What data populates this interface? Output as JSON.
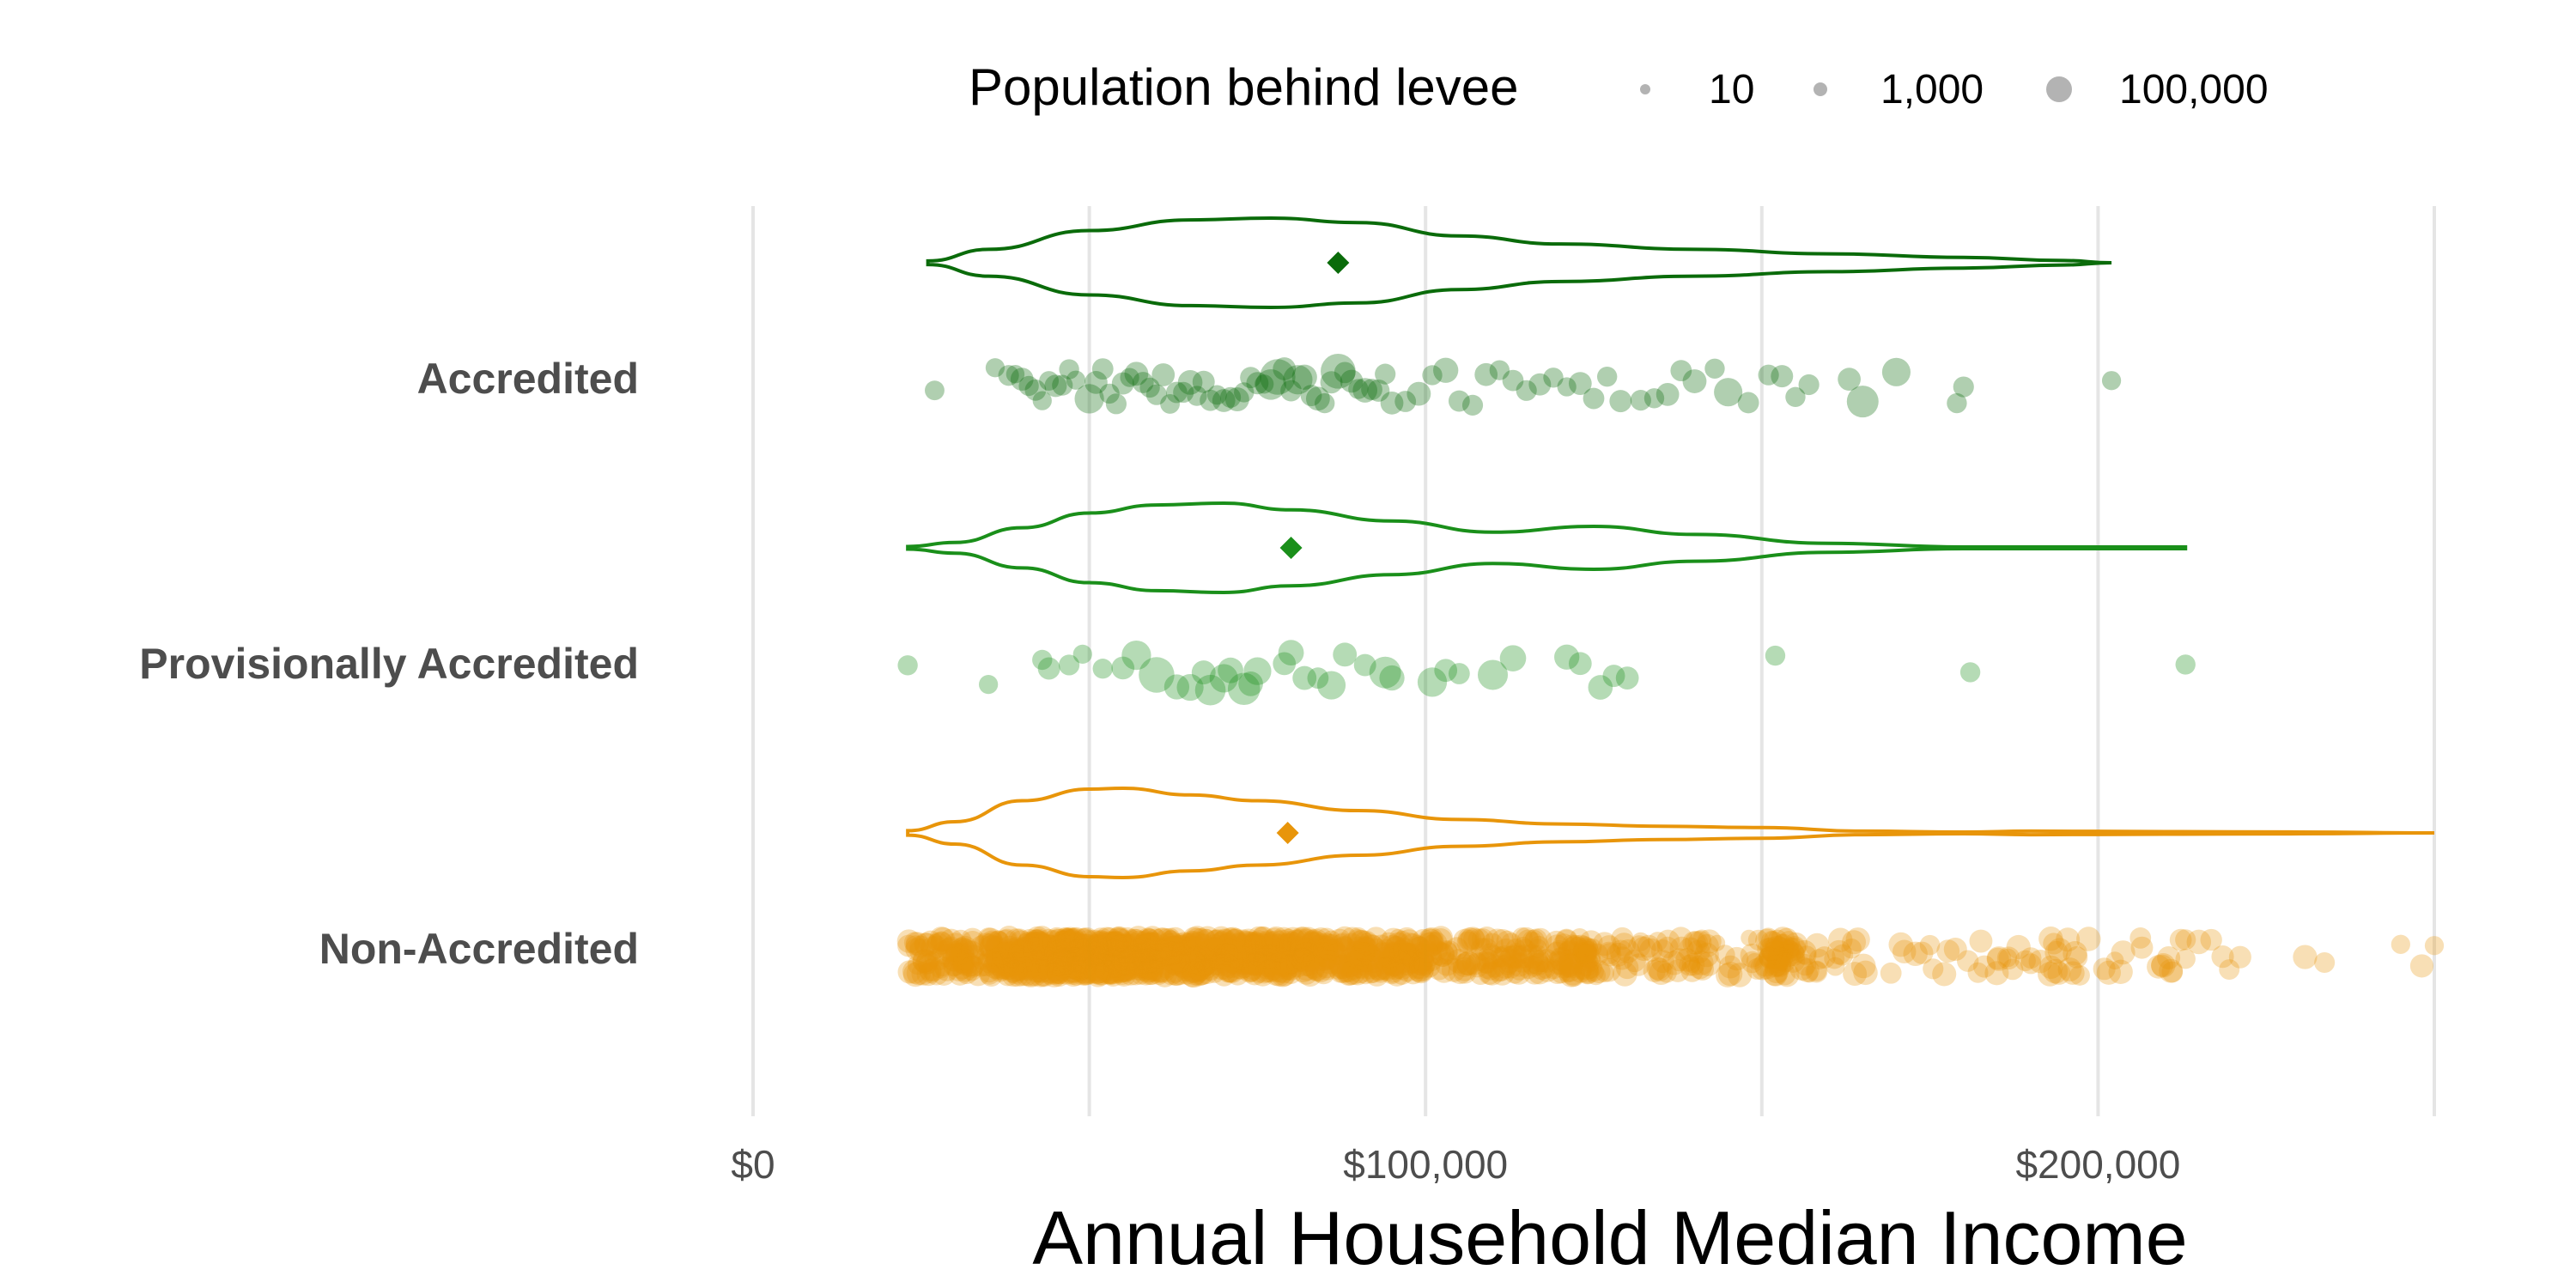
{
  "chart_data": {
    "type": "violin",
    "title": "",
    "xlabel": "Annual Household Median Income",
    "ylabel": "",
    "xlim": [
      0,
      250000
    ],
    "x_ticks": [
      0,
      100000,
      200000
    ],
    "x_tick_labels": [
      "$0",
      "$100,000",
      "$200,000"
    ],
    "grid": {
      "vertical": true,
      "horizontal": false
    },
    "legend": {
      "title": "Population behind levee",
      "placement": "top",
      "entries": [
        {
          "label": "10",
          "value": 10
        },
        {
          "label": "1,000",
          "value": 1000
        },
        {
          "label": "100,000",
          "value": 100000
        }
      ],
      "color": "#b3b3b3"
    },
    "groups": [
      {
        "name": "Accredited",
        "color": "#0a6b0a",
        "mean": 87000,
        "violin_density": [
          [
            26000,
            0.04
          ],
          [
            35000,
            0.3
          ],
          [
            50000,
            0.72
          ],
          [
            65000,
            0.96
          ],
          [
            77000,
            1.0
          ],
          [
            90000,
            0.9
          ],
          [
            105000,
            0.6
          ],
          [
            120000,
            0.42
          ],
          [
            140000,
            0.3
          ],
          [
            160000,
            0.2
          ],
          [
            180000,
            0.12
          ],
          [
            195000,
            0.05
          ],
          [
            202000,
            0.0
          ]
        ],
        "points": [
          [
            27000,
            50
          ],
          [
            36000,
            40
          ],
          [
            38000,
            80
          ],
          [
            39000,
            30
          ],
          [
            40000,
            200
          ],
          [
            41000,
            60
          ],
          [
            42000,
            100
          ],
          [
            43000,
            40
          ],
          [
            44000,
            50
          ],
          [
            45000,
            150
          ],
          [
            46000,
            80
          ],
          [
            47000,
            60
          ],
          [
            48000,
            40
          ],
          [
            50000,
            3000
          ],
          [
            51000,
            200
          ],
          [
            52000,
            100
          ],
          [
            53000,
            60
          ],
          [
            54000,
            80
          ],
          [
            55000,
            150
          ],
          [
            56000,
            40
          ],
          [
            57000,
            300
          ],
          [
            58000,
            100
          ],
          [
            59000,
            60
          ],
          [
            60000,
            80
          ],
          [
            61000,
            200
          ],
          [
            62000,
            50
          ],
          [
            63000,
            100
          ],
          [
            64000,
            80
          ],
          [
            65000,
            400
          ],
          [
            66000,
            60
          ],
          [
            67000,
            150
          ],
          [
            68000,
            100
          ],
          [
            69000,
            50
          ],
          [
            70000,
            200
          ],
          [
            71000,
            80
          ],
          [
            72000,
            300
          ],
          [
            73000,
            60
          ],
          [
            74000,
            100
          ],
          [
            75000,
            150
          ],
          [
            76000,
            40
          ],
          [
            77000,
            5000
          ],
          [
            78000,
            40000
          ],
          [
            79000,
            200
          ],
          [
            80000,
            100
          ],
          [
            81000,
            3000
          ],
          [
            82000,
            500
          ],
          [
            83000,
            100
          ],
          [
            84000,
            300
          ],
          [
            85000,
            60
          ],
          [
            86000,
            150
          ],
          [
            87000,
            30000
          ],
          [
            88000,
            100
          ],
          [
            89000,
            200
          ],
          [
            90000,
            60
          ],
          [
            91000,
            400
          ],
          [
            92000,
            100
          ],
          [
            93000,
            150
          ],
          [
            94000,
            80
          ],
          [
            95000,
            200
          ],
          [
            97000,
            100
          ],
          [
            99000,
            300
          ],
          [
            101000,
            60
          ],
          [
            103000,
            500
          ],
          [
            105000,
            100
          ],
          [
            107000,
            80
          ],
          [
            109000,
            200
          ],
          [
            111000,
            60
          ],
          [
            113000,
            100
          ],
          [
            115000,
            80
          ],
          [
            117000,
            150
          ],
          [
            119000,
            60
          ],
          [
            121000,
            40
          ],
          [
            123000,
            200
          ],
          [
            125000,
            100
          ],
          [
            127000,
            60
          ],
          [
            129000,
            150
          ],
          [
            132000,
            80
          ],
          [
            134000,
            60
          ],
          [
            136000,
            200
          ],
          [
            138000,
            100
          ],
          [
            140000,
            300
          ],
          [
            143000,
            60
          ],
          [
            145000,
            2000
          ],
          [
            148000,
            100
          ],
          [
            151000,
            80
          ],
          [
            153000,
            150
          ],
          [
            155000,
            60
          ],
          [
            157000,
            80
          ],
          [
            163000,
            200
          ],
          [
            165000,
            8000
          ],
          [
            170000,
            2000
          ],
          [
            179000,
            60
          ],
          [
            180000,
            80
          ],
          [
            202000,
            40
          ]
        ]
      },
      {
        "name": "Provisionally Accredited",
        "color": "#1a8f1a",
        "mean": 80000,
        "violin_density": [
          [
            23000,
            0.03
          ],
          [
            30000,
            0.12
          ],
          [
            40000,
            0.45
          ],
          [
            50000,
            0.78
          ],
          [
            60000,
            0.96
          ],
          [
            70000,
            1.0
          ],
          [
            80000,
            0.85
          ],
          [
            95000,
            0.6
          ],
          [
            110000,
            0.35
          ],
          [
            125000,
            0.48
          ],
          [
            140000,
            0.3
          ],
          [
            160000,
            0.1
          ],
          [
            180000,
            0.02
          ],
          [
            213000,
            0.02
          ]
        ],
        "points": [
          [
            23000,
            60
          ],
          [
            35000,
            40
          ],
          [
            43000,
            60
          ],
          [
            44000,
            150
          ],
          [
            47000,
            80
          ],
          [
            49000,
            40
          ],
          [
            52000,
            60
          ],
          [
            55000,
            200
          ],
          [
            57000,
            3000
          ],
          [
            60000,
            40000
          ],
          [
            63000,
            500
          ],
          [
            65000,
            1000
          ],
          [
            67000,
            300
          ],
          [
            68000,
            5000
          ],
          [
            70000,
            2000
          ],
          [
            71000,
            600
          ],
          [
            73000,
            10000
          ],
          [
            74000,
            400
          ],
          [
            75000,
            1500
          ],
          [
            79000,
            200
          ],
          [
            80000,
            600
          ],
          [
            82000,
            300
          ],
          [
            84000,
            100
          ],
          [
            86000,
            2000
          ],
          [
            88000,
            300
          ],
          [
            91000,
            150
          ],
          [
            94000,
            8000
          ],
          [
            95000,
            500
          ],
          [
            101000,
            3000
          ],
          [
            103000,
            200
          ],
          [
            105000,
            100
          ],
          [
            110000,
            4000
          ],
          [
            113000,
            800
          ],
          [
            121000,
            500
          ],
          [
            123000,
            200
          ],
          [
            126000,
            400
          ],
          [
            128000,
            150
          ],
          [
            130000,
            200
          ],
          [
            152000,
            60
          ],
          [
            181000,
            60
          ],
          [
            213000,
            60
          ]
        ]
      },
      {
        "name": "Non-Accredited",
        "color": "#e8950a",
        "mean": 79500,
        "violin_density": [
          [
            23000,
            0.05
          ],
          [
            30000,
            0.25
          ],
          [
            40000,
            0.72
          ],
          [
            50000,
            0.98
          ],
          [
            55000,
            1.0
          ],
          [
            65000,
            0.85
          ],
          [
            75000,
            0.72
          ],
          [
            90000,
            0.5
          ],
          [
            105000,
            0.3
          ],
          [
            120000,
            0.2
          ],
          [
            135000,
            0.15
          ],
          [
            150000,
            0.12
          ],
          [
            165000,
            0.04
          ],
          [
            180000,
            0.02
          ],
          [
            190000,
            0.04
          ],
          [
            210000,
            0.03
          ],
          [
            230000,
            0.02
          ],
          [
            250000,
            0.0
          ]
        ],
        "points": []
      }
    ]
  }
}
